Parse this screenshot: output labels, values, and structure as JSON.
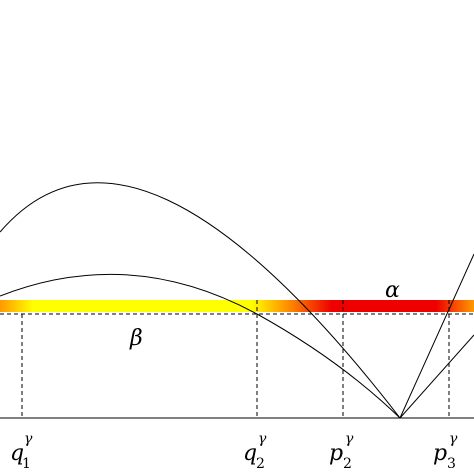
{
  "labels": {
    "alpha": "α",
    "beta": "β",
    "q1": {
      "base": "q",
      "sub": "1",
      "sup": "γ"
    },
    "q2": {
      "base": "q",
      "sub": "2",
      "sup": "γ"
    },
    "p2": {
      "base": "p",
      "sub": "2",
      "sup": "γ"
    },
    "p3": {
      "base": "p",
      "sub": "3",
      "sup": "γ"
    }
  },
  "band_colors": {
    "orange": "#ff9900",
    "yellow": "#ffff00",
    "red": "#ee0000"
  }
}
